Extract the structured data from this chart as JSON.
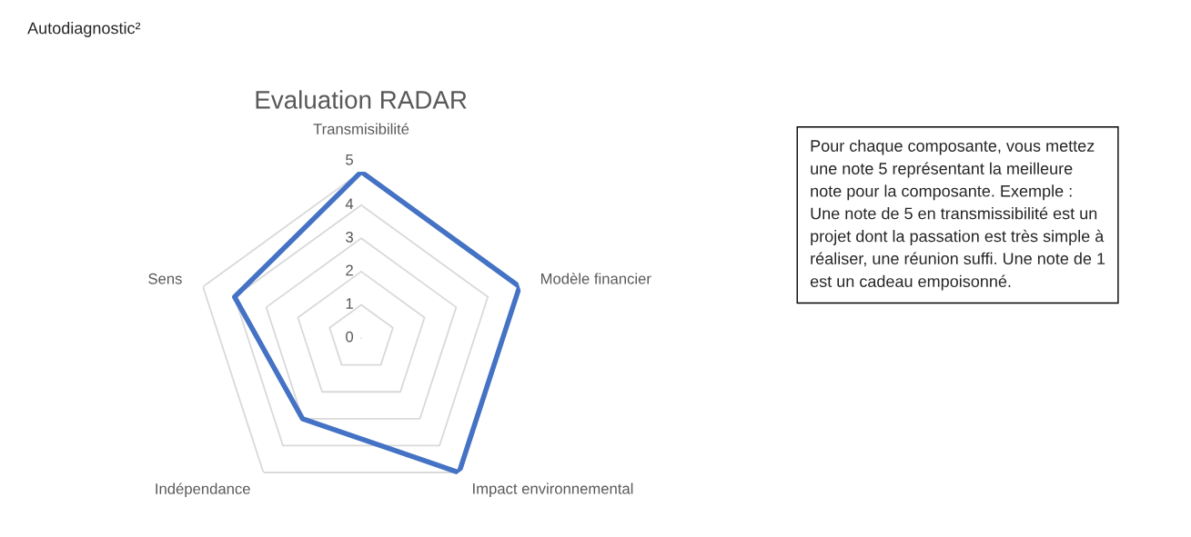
{
  "chart_data": {
    "type": "radar",
    "title": "Evaluation RADAR",
    "categories": [
      "Transmisibilité",
      "Modèle financier",
      "Impact environnemental",
      "Indépendance",
      "Sens"
    ],
    "series": [
      {
        "color": "#4472c4",
        "values": [
          5,
          5,
          5,
          3,
          4
        ]
      }
    ],
    "ylim": [
      0,
      5
    ],
    "yticks": [
      0,
      1,
      2,
      3,
      4,
      5
    ],
    "grid": true,
    "legend": false,
    "annotations": [
      "Autodiagnostic²",
      "Pour chaque composante, vous mettez une note 5 représentant la meilleure note pour la composante. Exemple : Une note de 5 en transmissibilité est un projet dont la passation est très simple à réaliser, une réunion suffi. Une note de 1 est un cadeau empoisonné."
    ]
  }
}
